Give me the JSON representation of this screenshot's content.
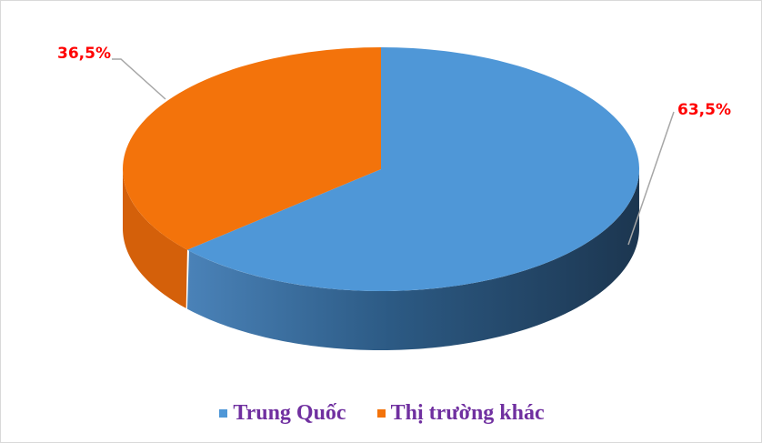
{
  "chart_data": {
    "type": "pie",
    "style": "3d",
    "title": "",
    "slices": [
      {
        "name": "Trung Quốc",
        "value": 63.5,
        "label": "63,5%",
        "color": "#4f97d7"
      },
      {
        "name": "Thị trường khác",
        "value": 36.5,
        "label": "36,5%",
        "color": "#f3730b"
      }
    ],
    "legend_position": "bottom",
    "label_color": "#ff0000",
    "legend_text_color": "#7030a0"
  }
}
